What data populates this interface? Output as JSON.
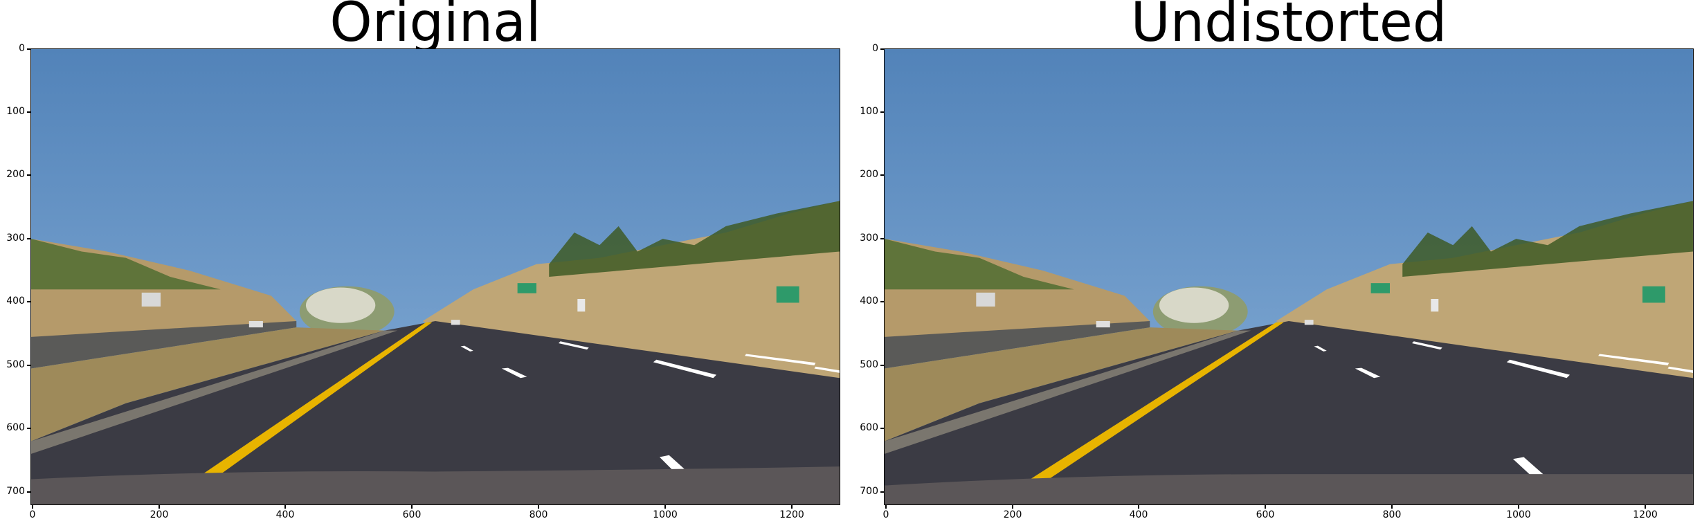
{
  "panels": [
    {
      "title": "Original",
      "frame_position": "left"
    },
    {
      "title": "Undistorted",
      "frame_position": "right"
    }
  ],
  "axes": {
    "y_ticks": [
      "0",
      "100",
      "200",
      "300",
      "400",
      "500",
      "600",
      "700"
    ],
    "x_ticks": [
      "0",
      "200",
      "400",
      "600",
      "800",
      "1000",
      "1200"
    ]
  },
  "colors": {
    "sky": "#5a8cc0",
    "road": "#3a3a42",
    "lane_yellow": "#e8b400",
    "lane_white": "#ffffff",
    "hills": "#b59a6a",
    "vegetation": "#3e5a26"
  },
  "scene": {
    "description_icons": [
      "road-sign-icon",
      "highway-sign-icon",
      "car-icon",
      "bush-icon",
      "tree-icon"
    ]
  }
}
